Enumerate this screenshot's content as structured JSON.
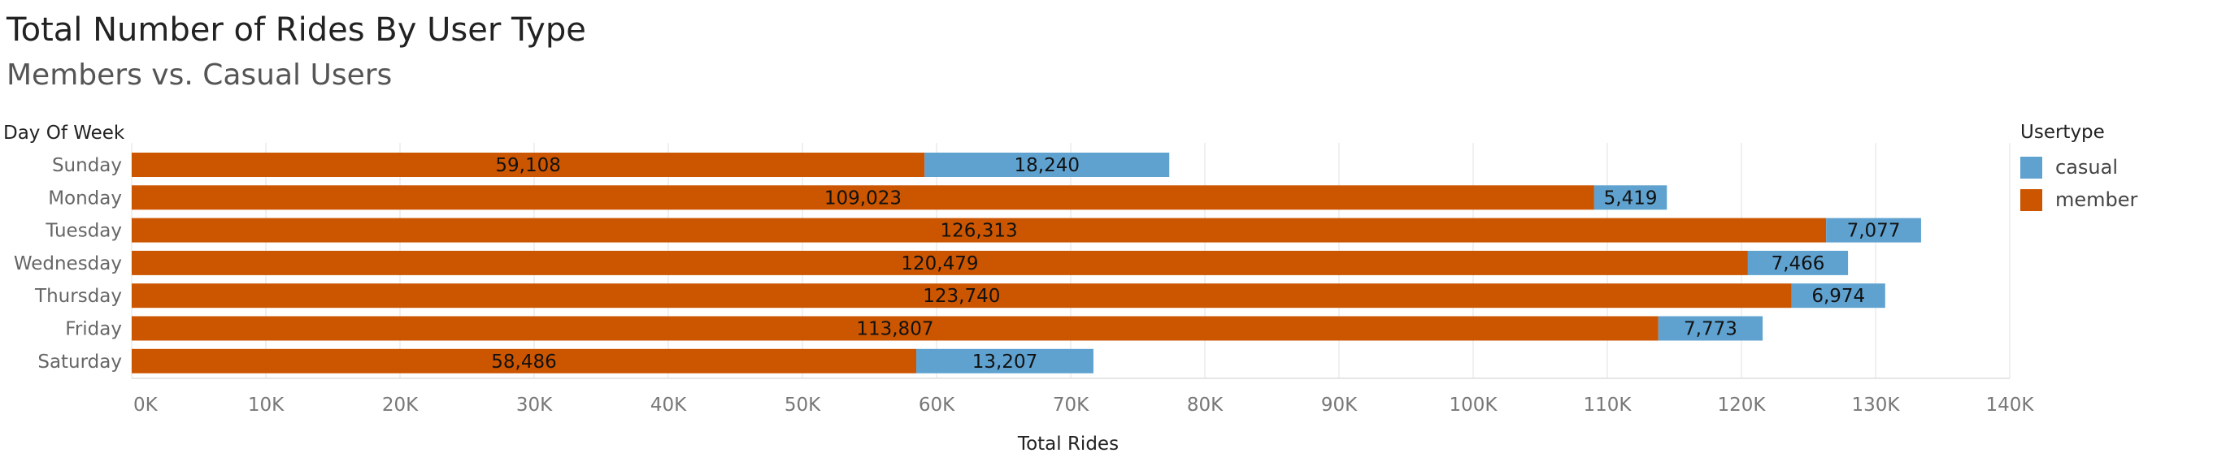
{
  "chart_data": {
    "type": "bar",
    "orientation": "horizontal",
    "stacked": true,
    "title": "Total Number of Rides By User Type",
    "subtitle": "Members vs. Casual Users",
    "ylabel": "Day Of Week",
    "xlabel": "Total Rides",
    "categories": [
      "Sunday",
      "Monday",
      "Tuesday",
      "Wednesday",
      "Thursday",
      "Friday",
      "Saturday"
    ],
    "series": [
      {
        "name": "member",
        "color": "#cc5500",
        "values": [
          59108,
          109023,
          126313,
          120479,
          123740,
          113807,
          58486
        ],
        "labels": [
          "59,108",
          "109,023",
          "126,313",
          "120,479",
          "123,740",
          "113,807",
          "58,486"
        ]
      },
      {
        "name": "casual",
        "color": "#5fa2d0",
        "values": [
          18240,
          5419,
          7077,
          7466,
          6974,
          7773,
          13207
        ],
        "labels": [
          "18,240",
          "5,419",
          "7,077",
          "7,466",
          "6,974",
          "7,773",
          "13,207"
        ]
      }
    ],
    "xlim": [
      0,
      140000
    ],
    "xticks": [
      0,
      10000,
      20000,
      30000,
      40000,
      50000,
      60000,
      70000,
      80000,
      90000,
      100000,
      110000,
      120000,
      130000,
      140000
    ],
    "xtick_labels": [
      "0K",
      "10K",
      "20K",
      "30K",
      "40K",
      "50K",
      "60K",
      "70K",
      "80K",
      "90K",
      "100K",
      "110K",
      "120K",
      "130K",
      "140K"
    ],
    "grid": true,
    "legend": {
      "title": "Usertype",
      "position": "right",
      "entries": [
        "casual",
        "member"
      ]
    }
  }
}
